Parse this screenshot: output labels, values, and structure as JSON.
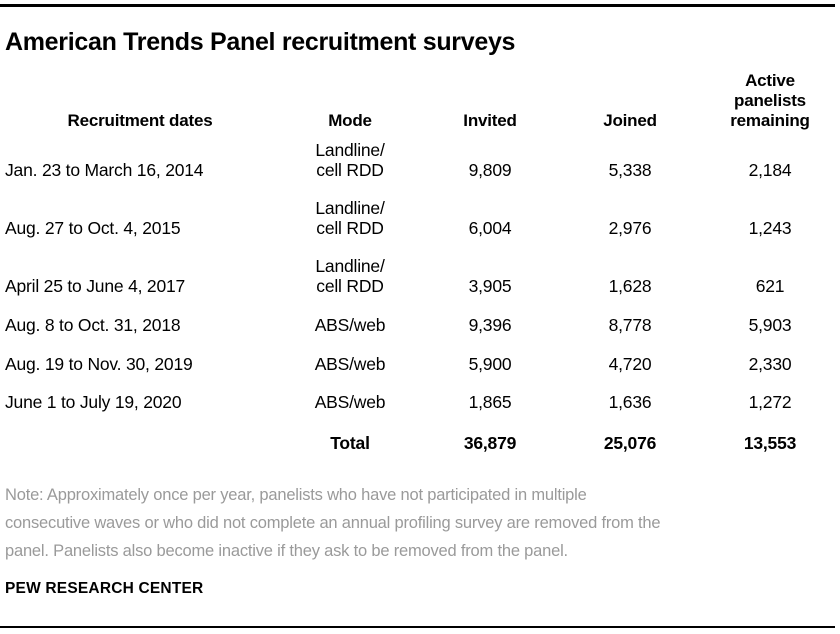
{
  "header": {
    "title": "American Trends Panel recruitment surveys"
  },
  "table": {
    "columns": {
      "dates": "Recruitment dates",
      "mode": "Mode",
      "invited": "Invited",
      "joined": "Joined",
      "remaining": "Active\npanelists\nremaining"
    },
    "rows": [
      {
        "date": "Jan. 23 to March 16, 2014",
        "mode": "Landline/\ncell RDD",
        "invited": "9,809",
        "joined": "5,338",
        "remaining": "2,184"
      },
      {
        "date": "Aug. 27 to Oct. 4, 2015",
        "mode": "Landline/\ncell RDD",
        "invited": "6,004",
        "joined": "2,976",
        "remaining": "1,243"
      },
      {
        "date": "April 25 to June 4, 2017",
        "mode": "Landline/\ncell RDD",
        "invited": "3,905",
        "joined": "1,628",
        "remaining": "621"
      },
      {
        "date": "Aug. 8 to Oct. 31, 2018",
        "mode": "ABS/web",
        "invited": "9,396",
        "joined": "8,778",
        "remaining": "5,903"
      },
      {
        "date": "Aug. 19 to Nov. 30, 2019",
        "mode": "ABS/web",
        "invited": "5,900",
        "joined": "4,720",
        "remaining": "2,330"
      },
      {
        "date": "June 1 to July 19, 2020",
        "mode": "ABS/web",
        "invited": "1,865",
        "joined": "1,636",
        "remaining": "1,272"
      }
    ],
    "total": {
      "label": "Total",
      "invited": "36,879",
      "joined": "25,076",
      "remaining": "13,553"
    }
  },
  "note": {
    "lines": [
      "Note: Approximately once per year, panelists who have not participated in multiple",
      "consecutive waves or who did not complete an annual profiling survey are removed from the",
      "panel. Panelists also become inactive if they ask to be removed from the panel."
    ]
  },
  "footer": {
    "source": "PEW RESEARCH CENTER"
  },
  "colors": {
    "background": "#ffffff",
    "text": "#000000",
    "note_text": "#9a9a9a",
    "rule": "#000000"
  },
  "chart_data": {
    "type": "table",
    "title": "American Trends Panel recruitment surveys",
    "columns": [
      "Recruitment dates",
      "Mode",
      "Invited",
      "Joined",
      "Active panelists remaining"
    ],
    "categories": [
      "Jan. 23 to March 16, 2014",
      "Aug. 27 to Oct. 4, 2015",
      "April 25 to June 4, 2017",
      "Aug. 8 to Oct. 31, 2018",
      "Aug. 19 to Nov. 30, 2019",
      "June 1 to July 19, 2020"
    ],
    "modes": [
      "Landline/cell RDD",
      "Landline/cell RDD",
      "Landline/cell RDD",
      "ABS/web",
      "ABS/web",
      "ABS/web"
    ],
    "series": [
      {
        "name": "Invited",
        "values": [
          9809,
          6004,
          3905,
          9396,
          5900,
          1865
        ]
      },
      {
        "name": "Joined",
        "values": [
          5338,
          2976,
          1628,
          8778,
          4720,
          1636
        ]
      },
      {
        "name": "Active panelists remaining",
        "values": [
          2184,
          1243,
          621,
          5903,
          2330,
          1272
        ]
      }
    ],
    "totals": {
      "Invited": 36879,
      "Joined": 25076,
      "Active panelists remaining": 13553
    }
  }
}
